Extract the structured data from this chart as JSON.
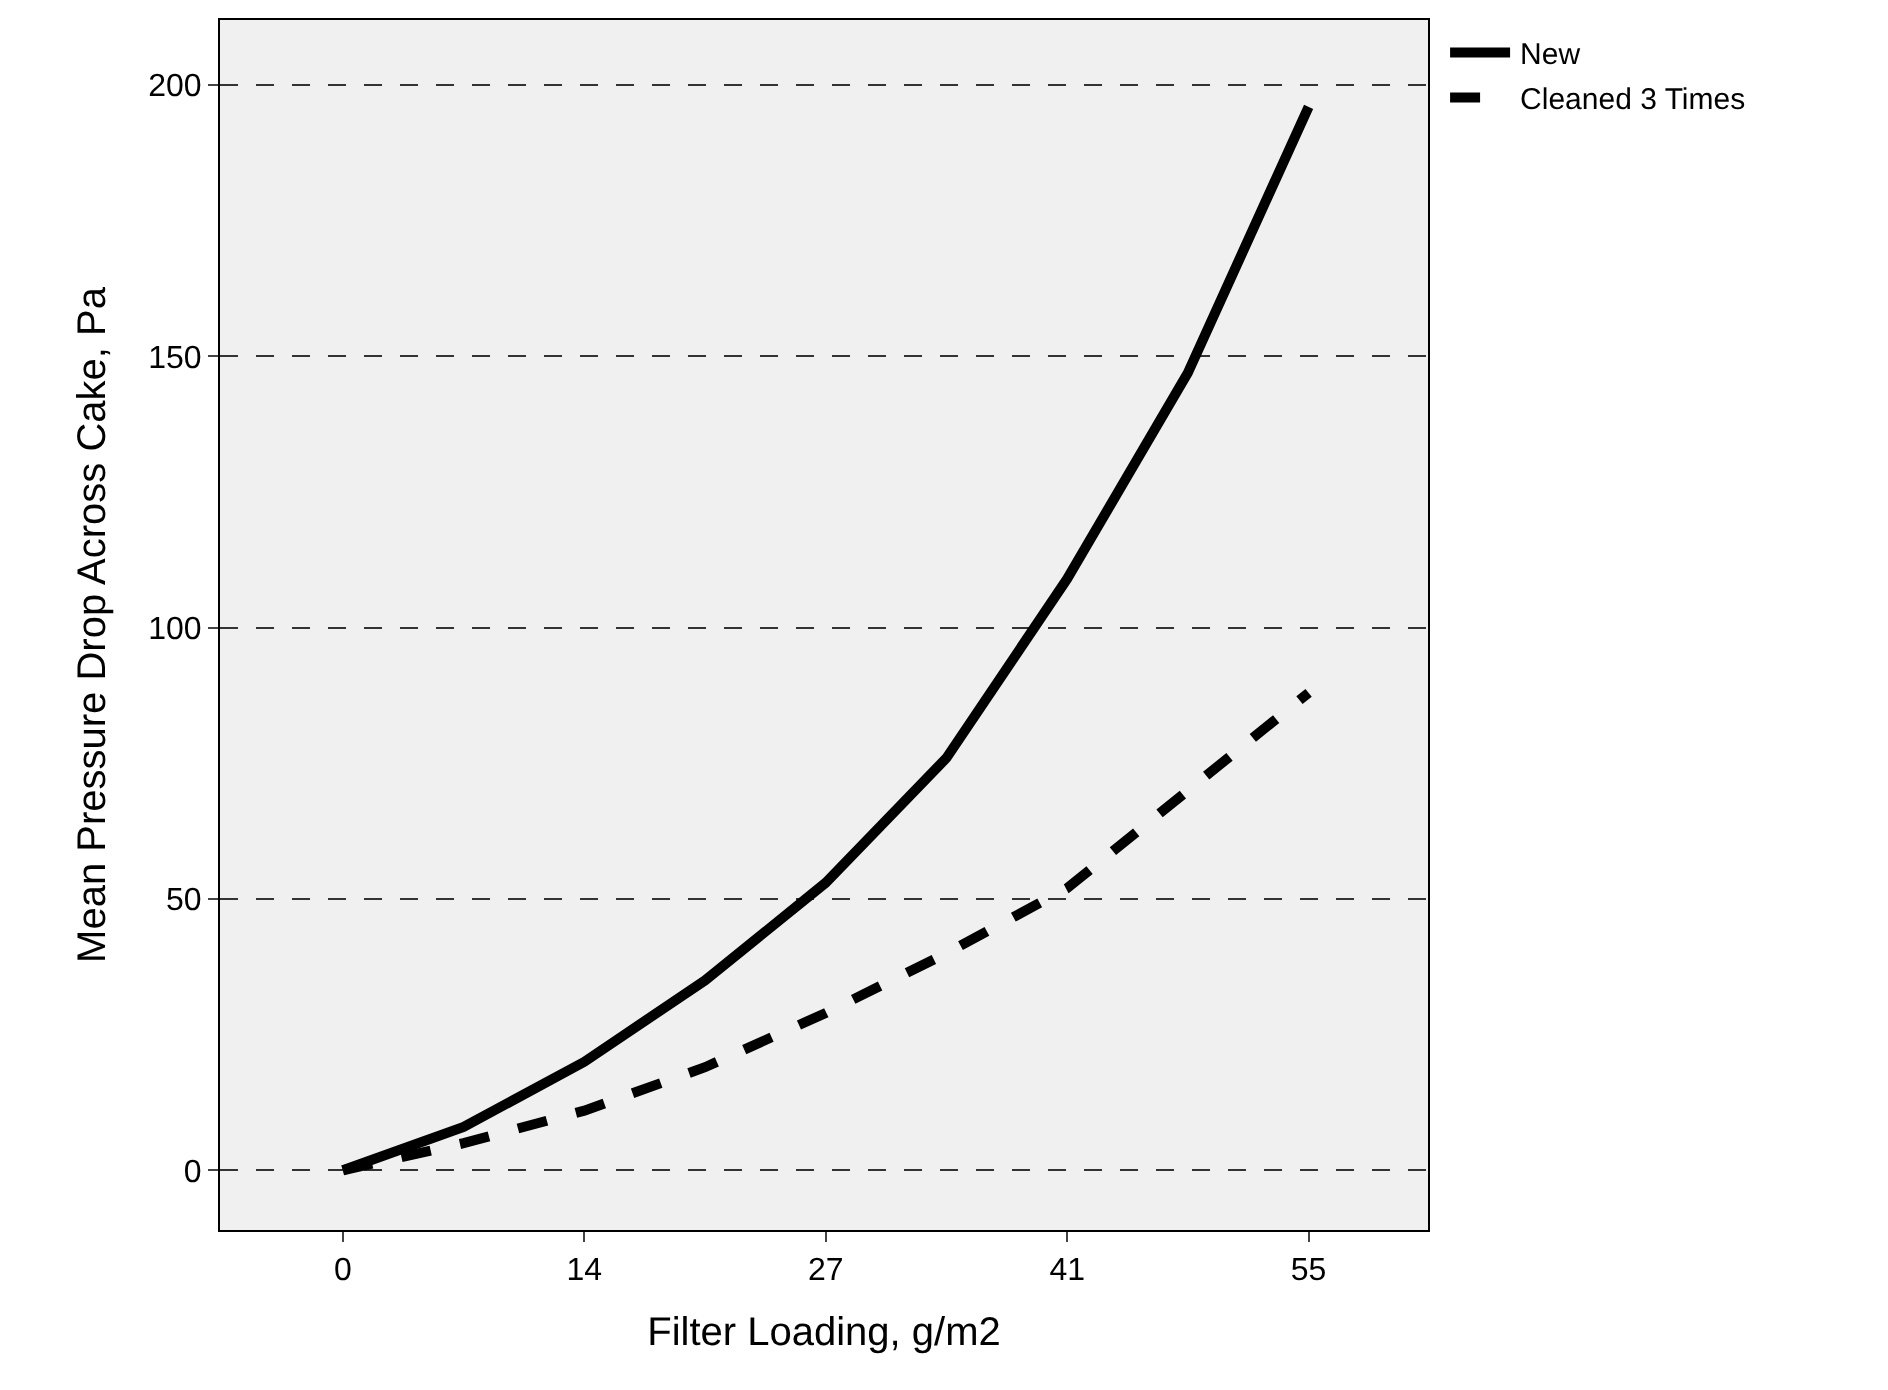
{
  "chart_data": {
    "type": "line",
    "xlabel": "Filter Loading, g/m2",
    "ylabel": "Mean Pressure Drop Across Cake, Pa",
    "x": [
      0,
      6.875,
      13.75,
      20.625,
      27.5,
      34.375,
      41.25,
      48.125,
      55
    ],
    "series": [
      {
        "name": "New",
        "color": "#000000",
        "line_style": "solid",
        "values": [
          0,
          8,
          20,
          35,
          53,
          76,
          109,
          147,
          196
        ]
      },
      {
        "name": "Cleaned 3 Times",
        "color": "#000000",
        "line_style": "dashed",
        "values": [
          0,
          5,
          11,
          19,
          29,
          40,
          52,
          70,
          88
        ]
      }
    ],
    "xlim": [
      -7,
      61.8
    ],
    "xticks": [
      0,
      {
        "value": 13.75,
        "label": "14"
      },
      {
        "value": 27.5,
        "label": "27"
      },
      {
        "value": 41.25,
        "label": "41"
      },
      55
    ],
    "ylim": [
      -11,
      212
    ],
    "yticks": [
      0,
      50,
      100,
      150,
      200
    ],
    "grid": "y",
    "legend": "top right",
    "marker": "none"
  }
}
